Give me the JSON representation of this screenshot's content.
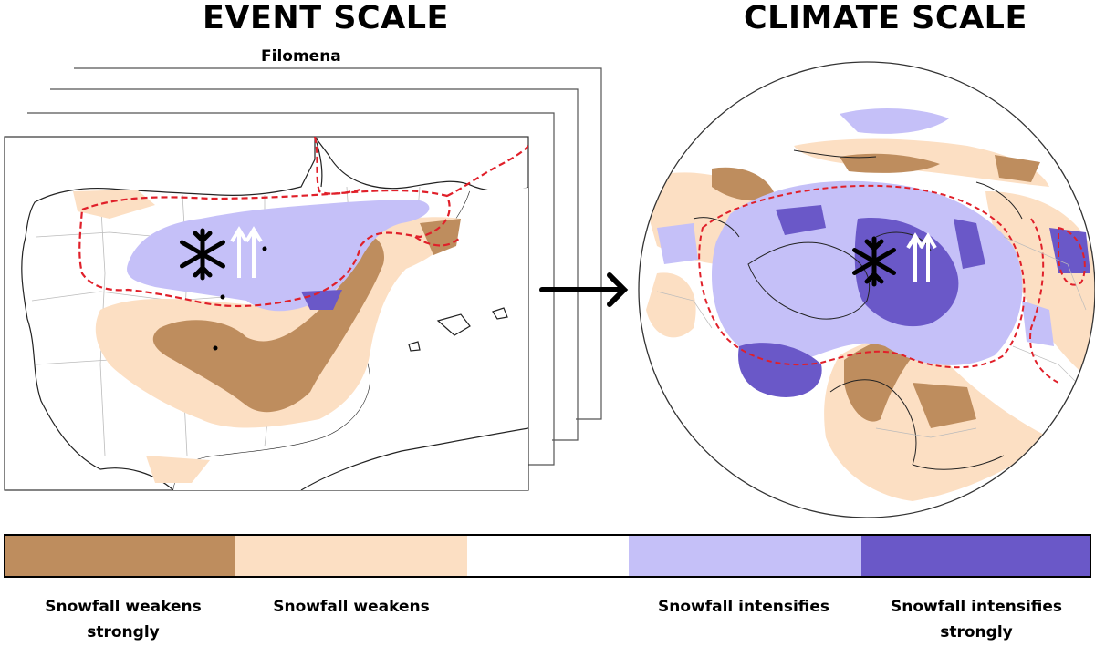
{
  "titles": {
    "event": "EVENT SCALE",
    "climate": "CLIMATE SCALE",
    "event_name": "Filomena"
  },
  "icons": [
    "snowflake-icon",
    "upward-arrows-icon",
    "right-arrow-icon"
  ],
  "legend": {
    "segments": [
      {
        "color": "#BE8D5E",
        "label": "Snowfall weakens\nstrongly"
      },
      {
        "color": "#FCDFC3",
        "label": "Snowfall weakens"
      },
      {
        "color": "#FFFFFF",
        "label": ""
      },
      {
        "color": "#C5C0F8",
        "label": "Snowfall intensifies"
      },
      {
        "color": "#6A58C8",
        "label": "Snowfall intensifies\nstrongly"
      }
    ]
  },
  "colors": {
    "strong_weaken": "#BE8D5E",
    "weaken": "#FCDFC3",
    "intensify": "#C5C0F8",
    "strong_intensify": "#6A58C8",
    "contour": "#E0202A"
  }
}
